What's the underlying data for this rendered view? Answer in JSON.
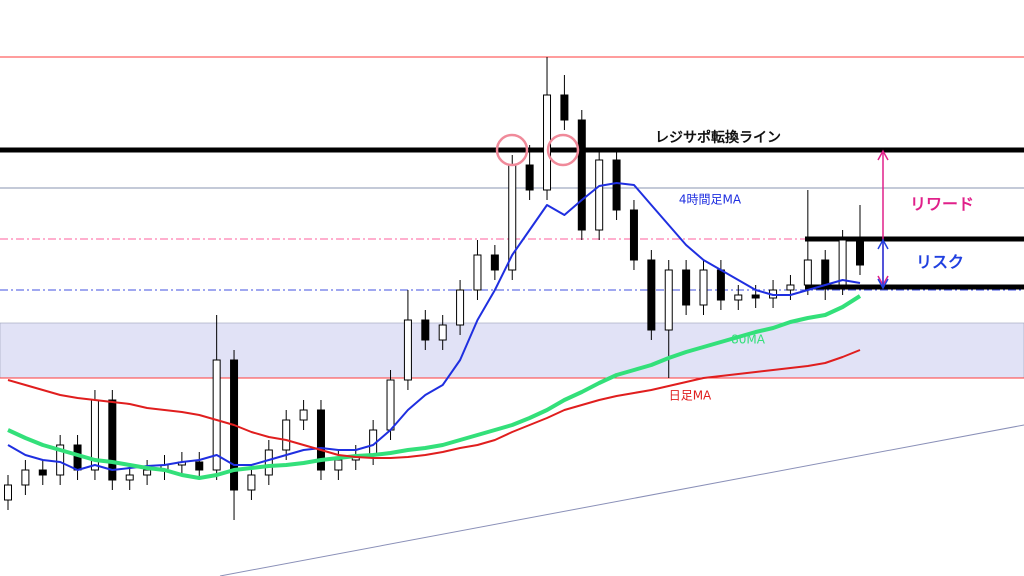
{
  "chart_data": {
    "type": "candlestick",
    "ylim": [
      0,
      576
    ],
    "open": [
      76,
      91,
      106,
      101,
      131,
      106,
      176,
      96,
      101,
      106,
      111,
      114,
      106,
      216,
      86,
      101,
      126,
      156,
      166,
      106,
      116,
      121,
      146,
      196,
      256,
      236,
      251,
      286,
      321,
      306,
      411,
      386,
      481,
      456,
      346,
      416,
      366,
      316,
      246,
      306,
      271,
      306,
      276,
      281,
      278,
      286,
      291,
      316,
      291,
      336
    ],
    "high": [
      101,
      116,
      116,
      141,
      141,
      186,
      186,
      111,
      116,
      121,
      124,
      124,
      261,
      226,
      111,
      136,
      166,
      176,
      176,
      126,
      131,
      156,
      206,
      286,
      266,
      261,
      296,
      336,
      331,
      421,
      431,
      519,
      501,
      466,
      426,
      426,
      376,
      326,
      316,
      316,
      316,
      316,
      291,
      291,
      296,
      301,
      386,
      326,
      346,
      371
    ],
    "low": [
      66,
      81,
      91,
      91,
      96,
      96,
      86,
      86,
      91,
      96,
      101,
      96,
      96,
      56,
      76,
      91,
      116,
      146,
      96,
      96,
      106,
      111,
      136,
      186,
      226,
      226,
      241,
      276,
      296,
      296,
      376,
      376,
      446,
      336,
      336,
      356,
      306,
      236,
      198,
      261,
      261,
      266,
      266,
      268,
      268,
      276,
      281,
      276,
      281,
      301
    ],
    "close": [
      91,
      106,
      101,
      131,
      106,
      176,
      96,
      101,
      106,
      111,
      114,
      106,
      216,
      86,
      101,
      126,
      156,
      166,
      106,
      116,
      121,
      146,
      196,
      256,
      236,
      251,
      286,
      321,
      306,
      411,
      386,
      481,
      456,
      346,
      416,
      366,
      316,
      246,
      306,
      271,
      306,
      276,
      281,
      278,
      286,
      291,
      316,
      291,
      336,
      311
    ],
    "series": [
      {
        "name": "4時間足MA",
        "color": "#1f2fe0",
        "values": [
          131,
          121,
          116,
          114,
          106,
          111,
          106,
          108,
          110,
          111,
          114,
          116,
          121,
          111,
          111,
          116,
          121,
          126,
          128,
          126,
          126,
          131,
          146,
          166,
          181,
          191,
          216,
          256,
          286,
          321,
          346,
          371,
          361,
          376,
          390,
          393,
          391,
          371,
          351,
          331,
          316,
          306,
          296,
          286,
          281,
          281,
          286,
          291,
          296,
          293
        ]
      },
      {
        "name": "80MA",
        "color": "#33e07a",
        "values": [
          146,
          138,
          131,
          126,
          121,
          116,
          114,
          111,
          108,
          106,
          101,
          98,
          101,
          106,
          108,
          110,
          111,
          113,
          116,
          118,
          120,
          121,
          123,
          126,
          128,
          131,
          136,
          141,
          146,
          151,
          158,
          166,
          176,
          184,
          193,
          201,
          206,
          211,
          218,
          224,
          229,
          234,
          239,
          244,
          248,
          254,
          258,
          261,
          269,
          280
        ]
      },
      {
        "name": "日足MA",
        "color": "#e01e1e",
        "values": [
          196,
          191,
          186,
          181,
          178,
          176,
          174,
          172,
          168,
          166,
          164,
          161,
          156,
          151,
          144,
          139,
          136,
          131,
          126,
          121,
          119,
          118,
          118,
          119,
          121,
          124,
          128,
          131,
          136,
          144,
          151,
          158,
          166,
          171,
          176,
          180,
          183,
          186,
          190,
          194,
          198,
          200,
          202,
          204,
          206,
          208,
          210,
          213,
          219,
          226
        ]
      }
    ],
    "levels": [
      {
        "value": 519,
        "color": "#ff3b3b",
        "width": 1,
        "style": "solid"
      },
      {
        "value": 426,
        "color": "#000000",
        "width": 5,
        "style": "solid"
      },
      {
        "value": 388,
        "color": "#8a94b0",
        "width": 1,
        "style": "solid"
      },
      {
        "value": 337,
        "color": "#ff5f9e",
        "width": 1,
        "style": "dashdot"
      },
      {
        "value": 286,
        "color": "#4050e0",
        "width": 1,
        "style": "dashdot"
      },
      {
        "value": 198,
        "color": "#ff3b3b",
        "width": 1,
        "style": "solid"
      }
    ],
    "band": {
      "from": 198,
      "to": 253,
      "color": "#e1e2f6"
    },
    "annotations": [
      "レジサポ転換ライン",
      "リワード",
      "リスク"
    ]
  }
}
